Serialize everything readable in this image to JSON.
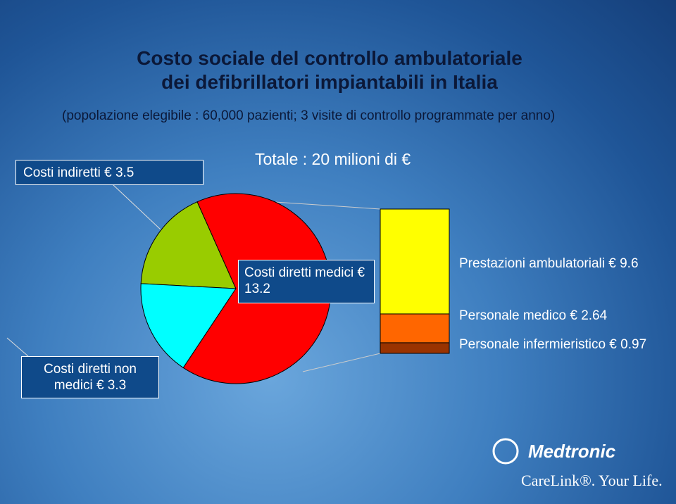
{
  "header": {
    "title_lines": [
      "Costo sociale del controllo ambulatoriale",
      "dei defibrillatori impiantabili in Italia"
    ],
    "subtitle": "(popolazione elegibile : 60,000 pazienti; 3 visite di controllo programmate per anno)"
  },
  "chart_data": [
    {
      "type": "pie",
      "annotation": "Totale : 20 milioni di €",
      "values": [
        3.5,
        3.3,
        13.2
      ],
      "value_labels": [
        "Costi indiretti € 3.5",
        "Costi diretti non medici € 3.3",
        "Costi diretti medici € 13.2"
      ],
      "colors": [
        "#99cc00",
        "#00ffff",
        "#ff0000"
      ]
    },
    {
      "type": "bar",
      "stacked": true,
      "values": [
        9.6,
        2.64,
        0.97
      ],
      "value_labels": [
        "Prestazioni ambulatoriali € 9.6",
        "Personale medico € 2.64",
        "Personale infermieristico € 0.97"
      ],
      "colors": [
        "#ffff00",
        "#ff6600",
        "#993300"
      ]
    }
  ],
  "footer": {
    "brand": "Medtronic",
    "tagline": "CareLink®. Your Life."
  }
}
